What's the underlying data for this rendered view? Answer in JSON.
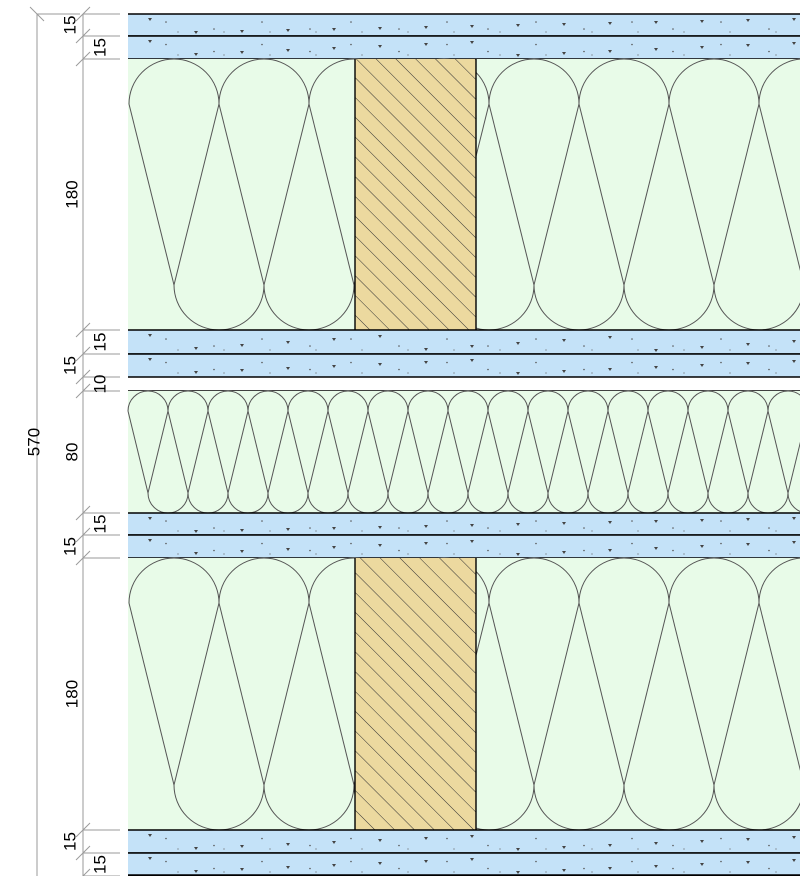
{
  "title": "",
  "colors": {
    "board": "#c4e2f8",
    "insulation": "#e8fbe8",
    "timber": "#ecd99f",
    "line": "#000000",
    "dimension_line": "#9a9a9a",
    "wool_outline": "#555555"
  },
  "dimensions": {
    "total": "570",
    "inner_chain": [
      {
        "value": "15",
        "kind": "board",
        "slab": 0
      },
      {
        "value": "15",
        "kind": "board",
        "slab": 1
      },
      {
        "value": "180",
        "kind": "insulation_stud",
        "slab": 2
      },
      {
        "value": "15",
        "kind": "board",
        "slab": 3
      },
      {
        "value": "15",
        "kind": "board",
        "slab": 4
      },
      {
        "value": "10",
        "kind": "air_gap",
        "slab": 5
      },
      {
        "value": "80",
        "kind": "insulation",
        "slab": 6
      },
      {
        "value": "15",
        "kind": "board",
        "slab": 7
      },
      {
        "value": "15",
        "kind": "board",
        "slab": 8
      },
      {
        "value": "180",
        "kind": "insulation_stud",
        "slab": 9
      },
      {
        "value": "15",
        "kind": "board",
        "slab": 10
      },
      {
        "value": "15",
        "kind": "board",
        "slab": 11
      }
    ]
  }
}
